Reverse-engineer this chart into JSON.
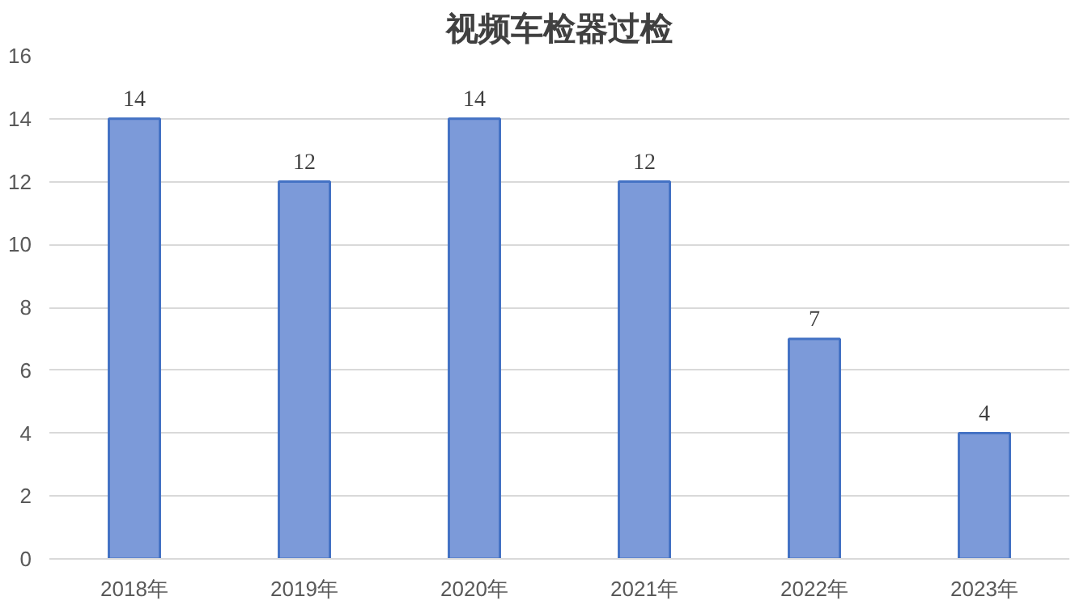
{
  "chart_data": {
    "type": "bar",
    "title": "视频车检器过检",
    "categories": [
      "2018年",
      "2019年",
      "2020年",
      "2021年",
      "2022年",
      "2023年"
    ],
    "values": [
      14,
      12,
      14,
      12,
      7,
      4
    ],
    "color": "#7c9ad9",
    "ylim": [
      0,
      16
    ],
    "yticks": [
      0,
      2,
      4,
      6,
      8,
      10,
      12,
      14,
      16
    ],
    "grid": "y",
    "data_labels": true
  }
}
